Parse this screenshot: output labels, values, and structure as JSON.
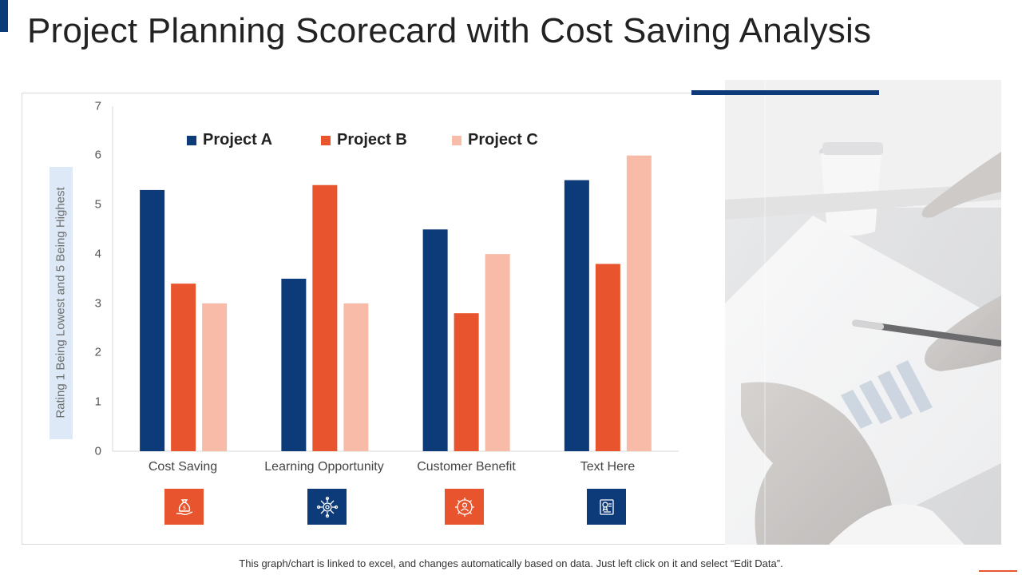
{
  "title": "Project Planning Scorecard with Cost Saving Analysis",
  "colors": {
    "project_a": "#0d3a78",
    "project_b": "#e8542d",
    "project_c": "#f7bba8",
    "accent": "#0d3a78"
  },
  "chart_data": {
    "type": "bar",
    "title": "",
    "xlabel": "",
    "ylabel": "Rating 1 Being Lowest and 5 Being Highest",
    "ylim": [
      0,
      7
    ],
    "yticks": [
      "0",
      "1",
      "2",
      "3",
      "4",
      "5",
      "6",
      "7"
    ],
    "categories": [
      "Cost Saving",
      "Learning Opportunity",
      "Customer Benefit",
      "Text Here"
    ],
    "series": [
      {
        "name": "Project A",
        "values": [
          5.3,
          3.5,
          4.5,
          5.5
        ]
      },
      {
        "name": "Project B",
        "values": [
          3.4,
          5.4,
          2.8,
          3.8
        ]
      },
      {
        "name": "Project C",
        "values": [
          3.0,
          3.0,
          4.0,
          6.0
        ]
      }
    ],
    "legend_position": "top"
  },
  "category_icons": [
    {
      "name": "money-bag-hand-icon",
      "color": "#e8542d"
    },
    {
      "name": "network-gear-icon",
      "color": "#0d3a78"
    },
    {
      "name": "gear-person-icon",
      "color": "#e8542d"
    },
    {
      "name": "certificate-icon",
      "color": "#0d3a78"
    }
  ],
  "footnote": "This graph/chart is linked to excel,  and changes automatically based on data. Just left click on it and select “Edit Data”."
}
